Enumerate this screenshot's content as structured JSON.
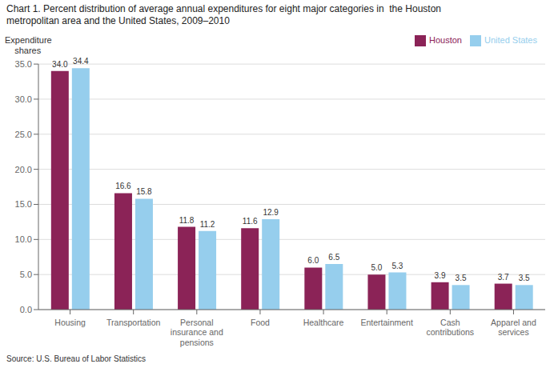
{
  "chart_data": {
    "type": "bar",
    "title": "Chart 1. Percent distribution of average annual expenditures for eight major categories in  the Houston\nmetropolitan area and the United States, 2009–2010",
    "ylabel": "Expenditure\n    shares",
    "categories": [
      "Housing",
      "Transportation",
      "Personal\ninsurance and\npensions",
      "Food",
      "Healthcare",
      "Entertainment",
      "Cash\ncontributions",
      "Apparel and\nservices"
    ],
    "series": [
      {
        "name": "Houston",
        "color": "#8B2357",
        "values": [
          34.0,
          16.6,
          11.8,
          11.6,
          6.0,
          5.0,
          3.9,
          3.7
        ],
        "value_labels": [
          "34.0",
          "16.6",
          "11.8",
          "11.6",
          "6.0",
          "5.0",
          "3.9",
          "3.7"
        ]
      },
      {
        "name": "United States",
        "color": "#96CEED",
        "values": [
          34.4,
          15.8,
          11.2,
          12.9,
          6.5,
          5.3,
          3.5,
          3.5
        ],
        "value_labels": [
          "34.4",
          "15.8",
          "11.2",
          "12.9",
          "6.5",
          "5.3",
          "3.5",
          "3.5"
        ]
      }
    ],
    "ylim": [
      0,
      35.0
    ],
    "yticks": [
      {
        "value": 0,
        "label": "0.0"
      },
      {
        "value": 5,
        "label": "5.0"
      },
      {
        "value": 10,
        "label": "10.0"
      },
      {
        "value": 15,
        "label": "15.0"
      },
      {
        "value": 20,
        "label": "20.0"
      },
      {
        "value": 25,
        "label": "25.0"
      },
      {
        "value": 30,
        "label": "30.0"
      },
      {
        "value": 35,
        "label": "35.0"
      }
    ],
    "grid": true,
    "legend": "upper right",
    "data_labels": true,
    "annotations": [
      "Source: U.S. Bureau of Labor Statistics"
    ]
  }
}
